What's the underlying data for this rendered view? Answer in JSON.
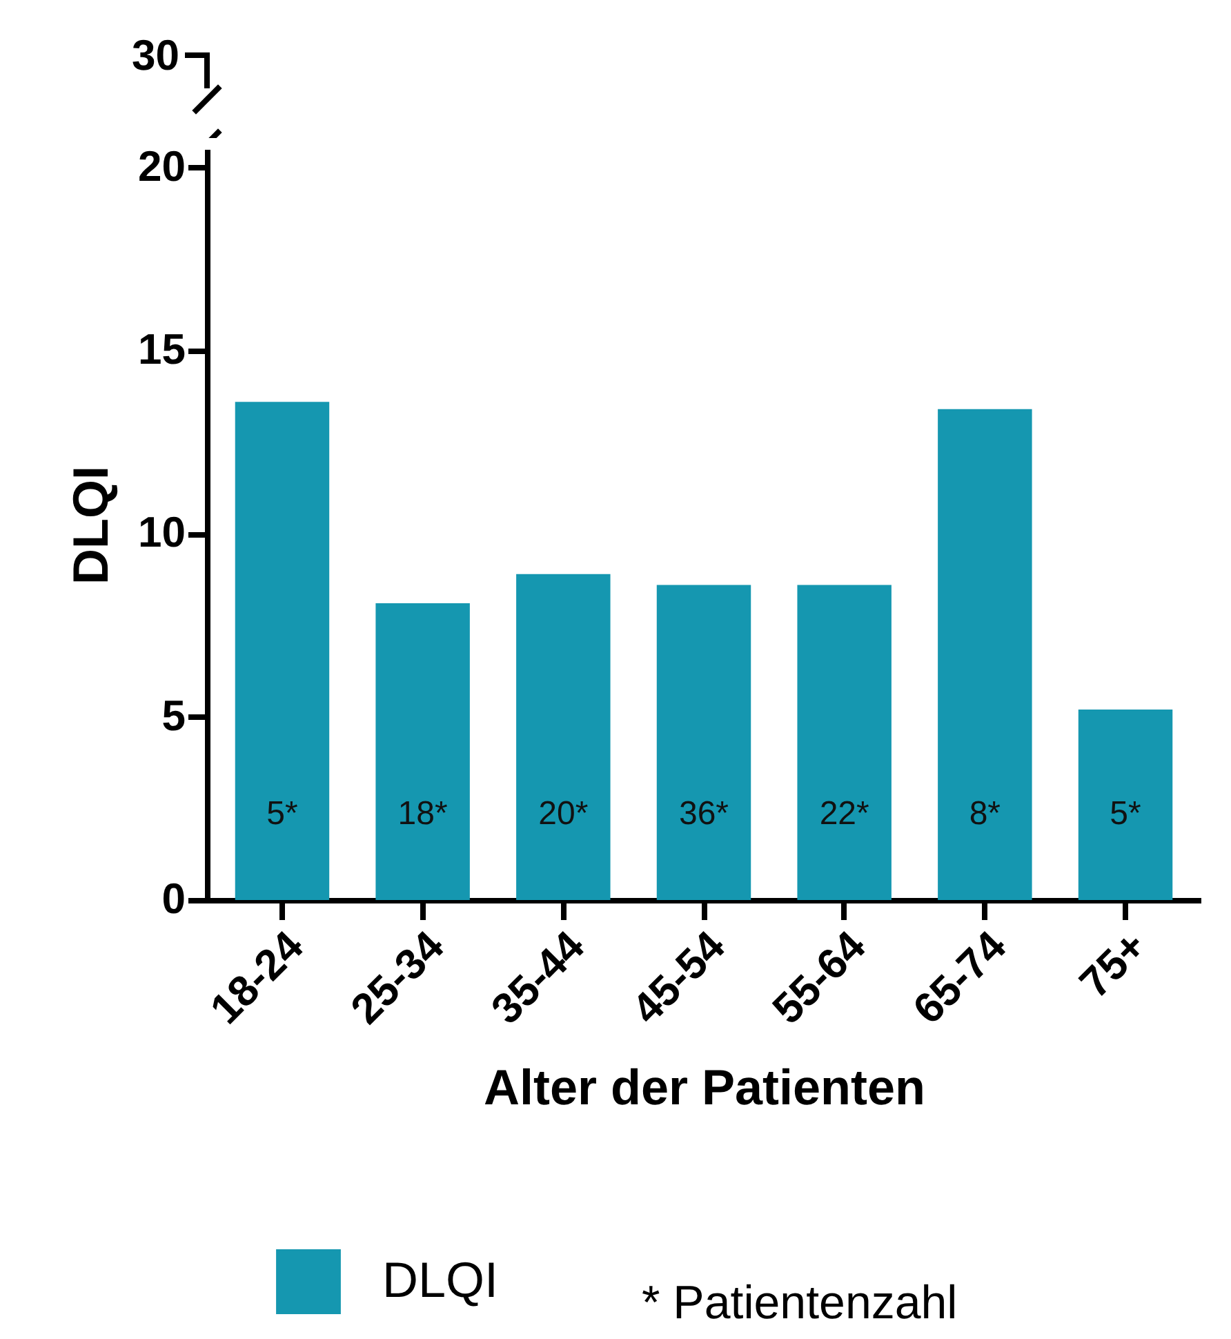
{
  "chart_data": {
    "type": "bar",
    "xlabel": "Alter der Patienten",
    "ylabel": "DLQI",
    "categories": [
      "18-24",
      "25-34",
      "35-44",
      "45-54",
      "55-64",
      "65-74",
      "75+"
    ],
    "series": [
      {
        "name": "DLQI",
        "color": "#1597b0",
        "values": [
          13.6,
          8.1,
          8.9,
          8.6,
          8.6,
          13.4,
          5.2
        ]
      }
    ],
    "ylim": [
      0,
      20.5
    ],
    "yticks": [
      0,
      5,
      10,
      15,
      20
    ],
    "annotations": [
      "30",
      "5*",
      "18*",
      "20*",
      "36*",
      "22*",
      "8*",
      "5*",
      "* Patientenzahl"
    ],
    "legend": "bottom",
    "grid": false
  }
}
